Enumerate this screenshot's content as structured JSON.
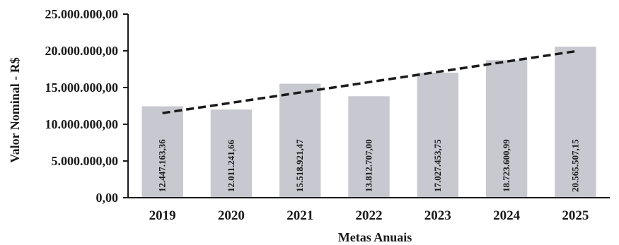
{
  "chart_data": {
    "type": "bar",
    "title": "",
    "xlabel": "Metas Anuais",
    "ylabel": "Valor Nominal - R$",
    "categories": [
      "2019",
      "2020",
      "2021",
      "2022",
      "2023",
      "2024",
      "2025"
    ],
    "values": [
      12447163.36,
      12011241.66,
      15518921.47,
      13812707.0,
      17027453.75,
      18723600.99,
      20565507.15
    ],
    "value_labels": [
      "12.447.163,36",
      "12.011.241,66",
      "15.518.921,47",
      "13.812.707,00",
      "17.027.453,75",
      "18.723.600,99",
      "20.565.507,15"
    ],
    "ylim": [
      0,
      25000000
    ],
    "yticks": [
      0,
      5000000,
      10000000,
      15000000,
      20000000,
      25000000
    ],
    "ytick_labels": [
      "0,00",
      "5.000.000,00",
      "10.000.000,00",
      "15.000.000,00",
      "20.000.000,00",
      "25.000.000,00"
    ],
    "trendline": {
      "style": "dashed",
      "type": "linear"
    },
    "grid": false,
    "legend": "none",
    "colors": {
      "bar": "#c8c9d0",
      "trend": "#1a1a1a",
      "axis": "#1a1a1a"
    }
  }
}
